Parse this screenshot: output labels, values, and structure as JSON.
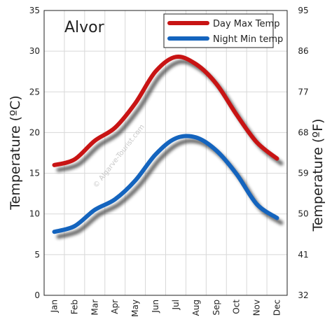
{
  "chart_data": {
    "type": "line",
    "title": "Alvor",
    "ylabel_left": "Temperature  (ºC)",
    "ylabel_right": "Temperature  (ºF)",
    "categories": [
      "Jan",
      "Feb",
      "Mar",
      "Apr",
      "May",
      "Jun",
      "Jul",
      "Aug",
      "Sep",
      "Oct",
      "Nov",
      "Dec"
    ],
    "ylim": [
      0,
      35
    ],
    "yticks_left": [
      "0",
      "5",
      "10",
      "15",
      "20",
      "25",
      "30",
      "35"
    ],
    "yticks_right": [
      "32",
      "41",
      "50",
      "59",
      "68",
      "77",
      "86",
      "95"
    ],
    "grid": true,
    "legend": "top-right",
    "watermark": "© Algarve-Tourist.com",
    "series": [
      {
        "name": "Day Max Temp",
        "color": "#c81414",
        "values": [
          16.0,
          16.7,
          19.0,
          20.6,
          23.6,
          27.5,
          29.3,
          28.4,
          26.0,
          22.2,
          18.8,
          16.8
        ]
      },
      {
        "name": "Night Min temp",
        "color": "#1464be",
        "values": [
          7.8,
          8.5,
          10.5,
          11.8,
          14.1,
          17.3,
          19.3,
          19.4,
          17.8,
          14.9,
          11.2,
          9.5
        ]
      }
    ]
  }
}
